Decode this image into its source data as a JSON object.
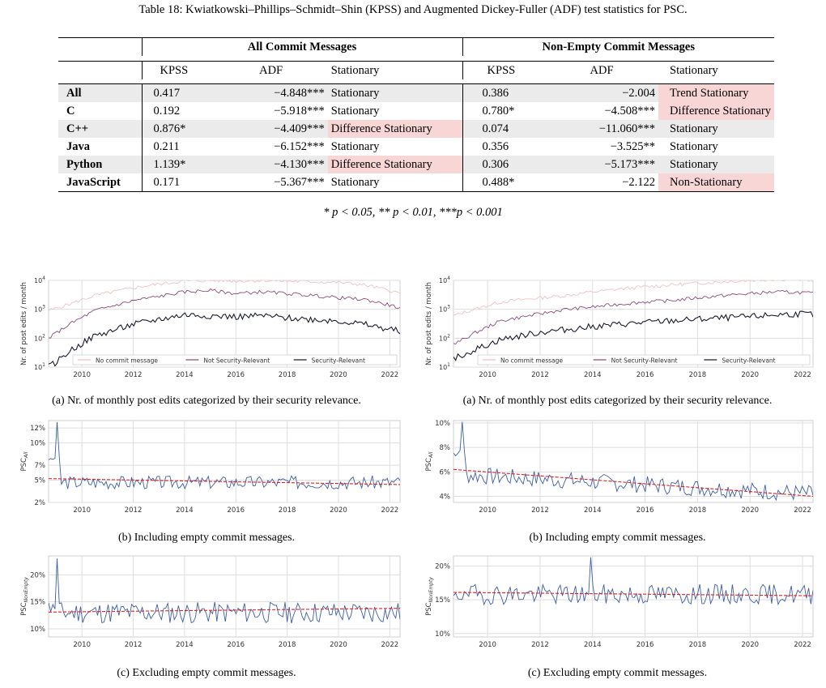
{
  "table": {
    "caption": "Table 18: Kwiatkowski–Phillips–Schmidt–Shin (KPSS) and Augmented Dickey-Fuller (ADF) test statistics for PSC.",
    "group_all": "All Commit Messages",
    "group_nonempty": "Non-Empty Commit Messages",
    "col_kpss": "KPSS",
    "col_adf": "ADF",
    "col_stationary": "Stationary",
    "rows": [
      {
        "label": "All",
        "kpss1": "0.417",
        "adf1": "−4.848***",
        "stat1": "Stationary",
        "kpss2": "0.386",
        "adf2": "−2.004",
        "stat2": "Trend Stationary"
      },
      {
        "label": "C",
        "kpss1": "0.192",
        "adf1": "−5.918***",
        "stat1": "Stationary",
        "kpss2": "0.780*",
        "adf2": "−4.508***",
        "stat2": "Difference Stationary"
      },
      {
        "label": "C++",
        "kpss1": "0.876*",
        "adf1": "−4.409***",
        "stat1": "Difference Stationary",
        "kpss2": "0.074",
        "adf2": "−11.060***",
        "stat2": "Stationary"
      },
      {
        "label": "Java",
        "kpss1": "0.211",
        "adf1": "−6.152***",
        "stat1": "Stationary",
        "kpss2": "0.356",
        "adf2": "−3.525**",
        "stat2": "Stationary"
      },
      {
        "label": "Python",
        "kpss1": "1.139*",
        "adf1": "−4.130***",
        "stat1": "Difference Stationary",
        "kpss2": "0.306",
        "adf2": "−5.173***",
        "stat2": "Stationary"
      },
      {
        "label": "JavaScript",
        "kpss1": "0.171",
        "adf1": "−5.367***",
        "stat1": "Stationary",
        "kpss2": "0.488*",
        "adf2": "−2.122",
        "stat2": "Non-Stationary"
      }
    ],
    "footnote": "* p < 0.05, ** p < 0.01, ***p < 0.001",
    "highlight_color": "#f9d6d6",
    "shade_color": "#ebebeb"
  },
  "captions": {
    "a_left": "(a) Nr. of monthly post edits categorized by their security relevance.",
    "a_right": "(a) Nr. of monthly post edits categorized by their security relevance.",
    "b_left": "(b) Including empty commit messages.",
    "b_right": "(b) Including empty commit messages.",
    "c_left": "(c) Excluding empty commit messages.",
    "c_right": "(c) Excluding empty commit messages."
  },
  "chart_data": [
    {
      "id": "a_left",
      "type": "line",
      "ylabel": "Nr. of post edits / month",
      "yscale": "log",
      "ylim": [
        10,
        10000
      ],
      "xlim": [
        2008.7,
        2022.4
      ],
      "yticks": [
        "10^1",
        "10^2",
        "10^3",
        "10^4"
      ],
      "xticks": [
        "2010",
        "2012",
        "2014",
        "2016",
        "2018",
        "2020",
        "2022"
      ],
      "legend": [
        "No commit message",
        "Not Security-Relevant",
        "Security-Relevant"
      ],
      "legend_position": "bottom",
      "colors": [
        "#f0c2c2",
        "#8e4a7f",
        "#1a1a33"
      ],
      "series": [
        {
          "name": "No commit message",
          "x": [
            2008.7,
            2009.5,
            2010.5,
            2012,
            2013,
            2014,
            2015,
            2016,
            2017,
            2018,
            2019,
            2020,
            2021,
            2022,
            2022.4
          ],
          "values": [
            900,
            1500,
            3000,
            5500,
            7500,
            9500,
            10000,
            9500,
            10000,
            9500,
            9000,
            8500,
            7000,
            4500,
            3500
          ]
        },
        {
          "name": "Not Security-Relevant",
          "x": [
            2008.7,
            2009.5,
            2010.5,
            2012,
            2013,
            2014,
            2015,
            2016,
            2017,
            2018,
            2019,
            2020,
            2021,
            2022,
            2022.4
          ],
          "values": [
            100,
            300,
            900,
            2000,
            2800,
            4000,
            4500,
            3500,
            4000,
            3500,
            3000,
            2500,
            2200,
            1400,
            1100
          ]
        },
        {
          "name": "Security-Relevant",
          "x": [
            2008.7,
            2009,
            2009.5,
            2010.5,
            2012,
            2013,
            2014,
            2015,
            2016,
            2017,
            2018,
            2019,
            2020,
            2021,
            2022,
            2022.4
          ],
          "values": [
            10,
            15,
            35,
            120,
            300,
            450,
            650,
            600,
            550,
            600,
            500,
            450,
            400,
            300,
            200,
            180
          ]
        }
      ]
    },
    {
      "id": "a_right",
      "type": "line",
      "ylabel": "Nr. of post edits / month",
      "yscale": "log",
      "ylim": [
        10,
        10000
      ],
      "xlim": [
        2008.7,
        2022.4
      ],
      "yticks": [
        "10^1",
        "10^2",
        "10^3",
        "10^4"
      ],
      "xticks": [
        "2010",
        "2012",
        "2014",
        "2016",
        "2018",
        "2020",
        "2022"
      ],
      "legend": [
        "No commit message",
        "Not Security-Relevant",
        "Security-Relevant"
      ],
      "legend_position": "bottom",
      "colors": [
        "#f0c2c2",
        "#8e4a7f",
        "#1a1a33"
      ],
      "series": [
        {
          "name": "No commit message",
          "x": [
            2008.7,
            2009.5,
            2010.5,
            2012,
            2013,
            2014,
            2015,
            2016,
            2017,
            2018,
            2019,
            2020,
            2021,
            2022,
            2022.4
          ],
          "values": [
            600,
            1000,
            1800,
            2500,
            3000,
            4000,
            5000,
            6000,
            7000,
            8000,
            9000,
            10000,
            11000,
            10500,
            10000
          ]
        },
        {
          "name": "Not Security-Relevant",
          "x": [
            2008.7,
            2009.5,
            2010.5,
            2012,
            2013,
            2014,
            2015,
            2016,
            2017,
            2018,
            2019,
            2020,
            2021,
            2022,
            2022.4
          ],
          "values": [
            60,
            150,
            400,
            700,
            1000,
            1200,
            1500,
            1800,
            2000,
            2500,
            3000,
            3500,
            4000,
            3800,
            3500
          ]
        },
        {
          "name": "Security-Relevant",
          "x": [
            2008.7,
            2009,
            2009.5,
            2010.5,
            2012,
            2013,
            2014,
            2015,
            2016,
            2017,
            2018,
            2019,
            2020,
            2021,
            2022,
            2022.4
          ],
          "values": [
            20,
            25,
            40,
            90,
            160,
            200,
            250,
            300,
            350,
            400,
            450,
            500,
            550,
            650,
            700,
            650
          ]
        }
      ]
    },
    {
      "id": "b_left",
      "type": "line",
      "ylabel": "PSC_All",
      "ylim": [
        2,
        13
      ],
      "xlim": [
        2008.7,
        2022.4
      ],
      "yticks": [
        "2%",
        "5%",
        "7%",
        "10%",
        "12%"
      ],
      "xticks": [
        "2010",
        "2012",
        "2014",
        "2016",
        "2018",
        "2020",
        "2022"
      ],
      "trend": [
        5.2,
        4.4
      ],
      "series": [
        {
          "name": "",
          "seed": 3,
          "start": 8.0,
          "spike_x": 2009.0,
          "spike_y": 12.8,
          "level": 4.7,
          "amp": 0.9
        }
      ]
    },
    {
      "id": "b_right",
      "type": "line",
      "ylabel": "PSC_All",
      "ylim": [
        3.5,
        10.2
      ],
      "xlim": [
        2008.7,
        2022.4
      ],
      "yticks": [
        "4%",
        "6%",
        "8%",
        "10%"
      ],
      "xticks": [
        "2010",
        "2012",
        "2014",
        "2016",
        "2018",
        "2020",
        "2022"
      ],
      "trend": [
        6.2,
        4.0
      ],
      "series": [
        {
          "name": "",
          "seed": 7,
          "start": 7.5,
          "spike_x": 2009.0,
          "spike_y": 10.1,
          "level_start": 5.8,
          "level_end": 4.2,
          "amp": 0.7
        }
      ]
    },
    {
      "id": "c_left",
      "type": "line",
      "ylabel": "PSC_NonEmpty",
      "ylim": [
        8.5,
        23.5
      ],
      "xlim": [
        2008.7,
        2022.4
      ],
      "yticks": [
        "10%",
        "15%",
        "20%"
      ],
      "xticks": [
        "2010",
        "2012",
        "2014",
        "2016",
        "2018",
        "2020",
        "2022"
      ],
      "trend": [
        13.1,
        13.8
      ],
      "series": [
        {
          "name": "",
          "seed": 11,
          "start": 14.0,
          "spike_x": 2009.0,
          "spike_y": 23.0,
          "level": 13.0,
          "amp": 2.0
        }
      ]
    },
    {
      "id": "c_right",
      "type": "line",
      "ylabel": "PSC_NonEmpty",
      "ylim": [
        9.5,
        21.5
      ],
      "xlim": [
        2008.7,
        2022.4
      ],
      "yticks": [
        "10%",
        "15%",
        "20%"
      ],
      "xticks": [
        "2010",
        "2012",
        "2014",
        "2016",
        "2018",
        "2020",
        "2022"
      ],
      "trend": [
        16.1,
        15.6
      ],
      "series": [
        {
          "name": "",
          "seed": 19,
          "start": 15.5,
          "spike_x": 2013.9,
          "spike_y": 21.3,
          "level": 15.8,
          "amp": 1.5
        }
      ]
    }
  ]
}
